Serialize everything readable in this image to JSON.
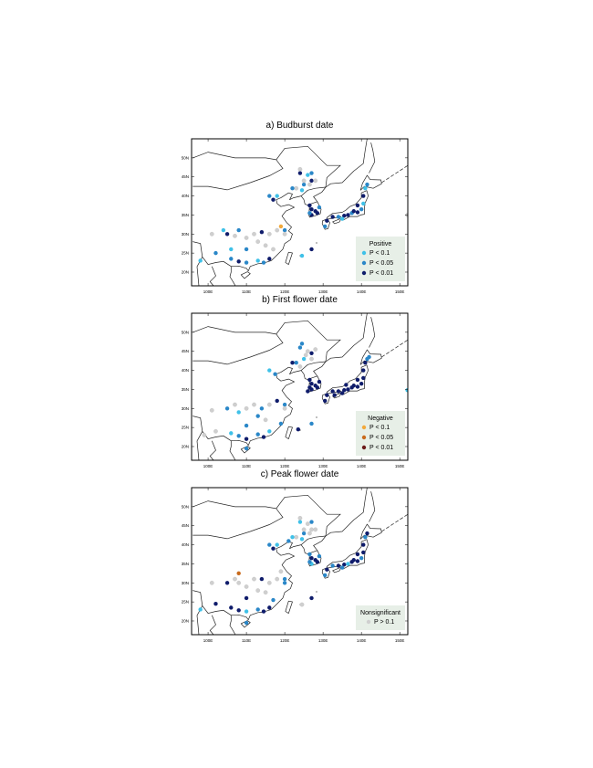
{
  "map": {
    "xlim": [
      95.7,
      152.1
    ],
    "ylim": [
      16.4,
      55
    ],
    "xticks": [
      {
        "value": 100,
        "label": "100E"
      },
      {
        "value": 110,
        "label": "110E"
      },
      {
        "value": 120,
        "label": "120E"
      },
      {
        "value": 130,
        "label": "130E"
      },
      {
        "value": 140,
        "label": "140E"
      },
      {
        "value": 150,
        "label": "150E"
      }
    ],
    "yticks": [
      {
        "value": 20,
        "label": "20N"
      },
      {
        "value": 25,
        "label": "25N"
      },
      {
        "value": 30,
        "label": "30N"
      },
      {
        "value": 35,
        "label": "35N"
      },
      {
        "value": 40,
        "label": "40N"
      },
      {
        "value": 45,
        "label": "45N"
      },
      {
        "value": 50,
        "label": "50N"
      }
    ],
    "palette": [
      "#3fc1e8",
      "#2a87c8",
      "#0f1c6b",
      "#f2a93b",
      "#c96a1c",
      "#6b1a1a",
      "#cfcfcf"
    ]
  },
  "panels": [
    {
      "title": "a) Budburst date",
      "legend": {
        "title": "Positive",
        "items": [
          {
            "label": "P < 0.1",
            "color": 0
          },
          {
            "label": "P < 0.05",
            "color": 1
          },
          {
            "label": "P < 0.01",
            "color": 2
          }
        ]
      },
      "points": [
        [
          124,
          46,
          2
        ],
        [
          126,
          45.5,
          0
        ],
        [
          127,
          44,
          2
        ],
        [
          125,
          43,
          1
        ],
        [
          123,
          42,
          6
        ],
        [
          125,
          44,
          6
        ],
        [
          126.5,
          43,
          6
        ],
        [
          128,
          44,
          6
        ],
        [
          124,
          47,
          6
        ],
        [
          122,
          42,
          1
        ],
        [
          124.5,
          41.5,
          0
        ],
        [
          127,
          46,
          1
        ],
        [
          116,
          40,
          1
        ],
        [
          117,
          39,
          2
        ],
        [
          118,
          40,
          0
        ],
        [
          126.5,
          37.5,
          2
        ],
        [
          127,
          36.5,
          2
        ],
        [
          128,
          36,
          2
        ],
        [
          127,
          35,
          2
        ],
        [
          126.5,
          35.5,
          1
        ],
        [
          128.5,
          35.5,
          2
        ],
        [
          129,
          37,
          1
        ],
        [
          131,
          33.5,
          2
        ],
        [
          132.5,
          34.5,
          2
        ],
        [
          134,
          34.5,
          1
        ],
        [
          135.5,
          34.8,
          2
        ],
        [
          136.5,
          35,
          2
        ],
        [
          137.5,
          35.5,
          1
        ],
        [
          139,
          35.7,
          2
        ],
        [
          140,
          36.5,
          1
        ],
        [
          140.5,
          38,
          0
        ],
        [
          140.5,
          40,
          2
        ],
        [
          141,
          42,
          0
        ],
        [
          141.5,
          43,
          1
        ],
        [
          139,
          37.5,
          2
        ],
        [
          130.5,
          32,
          1
        ],
        [
          135,
          34,
          0
        ],
        [
          138,
          36,
          2
        ],
        [
          104,
          31,
          0
        ],
        [
          105,
          30,
          2
        ],
        [
          107,
          29.5,
          6
        ],
        [
          108,
          31,
          1
        ],
        [
          110,
          29,
          6
        ],
        [
          112,
          30,
          6
        ],
        [
          114,
          30.5,
          2
        ],
        [
          116,
          30,
          6
        ],
        [
          118,
          31,
          6
        ],
        [
          119,
          32,
          3
        ],
        [
          120,
          31,
          1
        ],
        [
          113,
          28,
          6
        ],
        [
          115,
          27,
          6
        ],
        [
          110,
          26,
          1
        ],
        [
          102,
          25,
          1
        ],
        [
          98,
          23,
          0
        ],
        [
          106,
          23.5,
          1
        ],
        [
          108,
          22.8,
          2
        ],
        [
          110,
          22.5,
          1
        ],
        [
          113,
          23,
          0
        ],
        [
          114.5,
          22.5,
          1
        ],
        [
          116,
          23.5,
          2
        ],
        [
          117,
          26,
          6
        ],
        [
          101,
          30,
          6
        ],
        [
          120,
          30,
          6
        ],
        [
          152,
          35,
          6
        ],
        [
          127,
          26,
          2
        ],
        [
          124.5,
          24.3,
          0
        ],
        [
          106,
          26,
          0
        ]
      ]
    },
    {
      "title": "b) First flower date",
      "legend": {
        "title": "Negative",
        "items": [
          {
            "label": "P < 0.1",
            "color": 3
          },
          {
            "label": "P < 0.05",
            "color": 4
          },
          {
            "label": "P < 0.01",
            "color": 5
          }
        ]
      },
      "points": [
        [
          124,
          46,
          1
        ],
        [
          126,
          45,
          6
        ],
        [
          127,
          44.5,
          2
        ],
        [
          125,
          43,
          0
        ],
        [
          123,
          42,
          1
        ],
        [
          125.5,
          44,
          6
        ],
        [
          127,
          43,
          6
        ],
        [
          128,
          45.5,
          6
        ],
        [
          124.5,
          47,
          1
        ],
        [
          122,
          42,
          2
        ],
        [
          124,
          41,
          6
        ],
        [
          116,
          40,
          0
        ],
        [
          117.5,
          39,
          1
        ],
        [
          126.5,
          37.5,
          2
        ],
        [
          127,
          36.5,
          2
        ],
        [
          128,
          36,
          2
        ],
        [
          127,
          35,
          2
        ],
        [
          126.5,
          35.5,
          2
        ],
        [
          128.5,
          35.5,
          2
        ],
        [
          129,
          37,
          2
        ],
        [
          126,
          34.5,
          2
        ],
        [
          131,
          33.5,
          2
        ],
        [
          132.5,
          34.5,
          2
        ],
        [
          134,
          34.5,
          2
        ],
        [
          135.5,
          34.8,
          2
        ],
        [
          136.5,
          35,
          2
        ],
        [
          137.5,
          35.5,
          2
        ],
        [
          139,
          35.7,
          2
        ],
        [
          140,
          36.5,
          2
        ],
        [
          140.5,
          38,
          2
        ],
        [
          140.5,
          40,
          2
        ],
        [
          141,
          42,
          2
        ],
        [
          141.5,
          43,
          1
        ],
        [
          139,
          37.5,
          2
        ],
        [
          130.5,
          32,
          2
        ],
        [
          135,
          34,
          2
        ],
        [
          138,
          36,
          2
        ],
        [
          133,
          33.5,
          2
        ],
        [
          136,
          36.2,
          2
        ],
        [
          142,
          43.5,
          1
        ],
        [
          152,
          34.8,
          0
        ],
        [
          105,
          30,
          1
        ],
        [
          107,
          31,
          6
        ],
        [
          108,
          29,
          0
        ],
        [
          110,
          30,
          6
        ],
        [
          112,
          31,
          6
        ],
        [
          114,
          30,
          1
        ],
        [
          116,
          31,
          6
        ],
        [
          118,
          32,
          2
        ],
        [
          120,
          31,
          1
        ],
        [
          113,
          28,
          1
        ],
        [
          115,
          27,
          6
        ],
        [
          110,
          25.5,
          1
        ],
        [
          102,
          24,
          6
        ],
        [
          99,
          23,
          6
        ],
        [
          106,
          23.5,
          0
        ],
        [
          108,
          22.8,
          1
        ],
        [
          110,
          22,
          2
        ],
        [
          113,
          23.2,
          1
        ],
        [
          114.5,
          22.5,
          2
        ],
        [
          116,
          24,
          0
        ],
        [
          119,
          26,
          1
        ],
        [
          101,
          29.5,
          6
        ],
        [
          120,
          30,
          6
        ],
        [
          127,
          26,
          1
        ],
        [
          123.5,
          24.5,
          2
        ],
        [
          110,
          19.5,
          1
        ]
      ]
    },
    {
      "title": "c) Peak flower date",
      "legend": {
        "title": "Nonsignificant",
        "items": [
          {
            "label": "P > 0.1",
            "color": 6
          }
        ]
      },
      "points": [
        [
          124,
          46,
          0
        ],
        [
          126,
          45.5,
          6
        ],
        [
          127,
          44,
          6
        ],
        [
          125,
          43,
          1
        ],
        [
          123,
          42,
          6
        ],
        [
          125,
          44,
          6
        ],
        [
          126.5,
          43,
          6
        ],
        [
          128,
          44,
          6
        ],
        [
          124,
          47,
          6
        ],
        [
          122,
          42,
          0
        ],
        [
          124.5,
          41.5,
          0
        ],
        [
          127,
          46,
          1
        ],
        [
          121,
          41,
          1
        ],
        [
          116,
          40,
          1
        ],
        [
          117,
          39,
          2
        ],
        [
          118,
          40,
          0
        ],
        [
          126.5,
          37.5,
          1
        ],
        [
          127,
          36.5,
          2
        ],
        [
          128,
          36,
          2
        ],
        [
          127,
          35,
          0
        ],
        [
          126.5,
          35.5,
          1
        ],
        [
          128.5,
          35.5,
          2
        ],
        [
          129,
          37,
          1
        ],
        [
          131,
          33.5,
          2
        ],
        [
          132.5,
          34.5,
          1
        ],
        [
          134,
          34.5,
          2
        ],
        [
          135.5,
          34.8,
          2
        ],
        [
          136.5,
          35,
          0
        ],
        [
          137.5,
          35.5,
          2
        ],
        [
          139,
          35.7,
          2
        ],
        [
          140,
          36.5,
          1
        ],
        [
          140.5,
          38,
          2
        ],
        [
          140.5,
          40,
          2
        ],
        [
          141,
          42,
          1
        ],
        [
          141.5,
          43,
          2
        ],
        [
          139,
          37.5,
          2
        ],
        [
          130.5,
          32,
          1
        ],
        [
          135,
          34,
          1
        ],
        [
          138,
          36,
          2
        ],
        [
          105,
          30,
          2
        ],
        [
          107,
          31,
          6
        ],
        [
          108,
          30,
          6
        ],
        [
          110,
          29,
          6
        ],
        [
          112,
          31,
          6
        ],
        [
          114,
          31,
          2
        ],
        [
          116,
          30,
          6
        ],
        [
          118,
          31,
          6
        ],
        [
          119,
          33,
          6
        ],
        [
          120,
          31,
          1
        ],
        [
          113,
          28,
          6
        ],
        [
          115,
          27.5,
          6
        ],
        [
          110,
          26,
          2
        ],
        [
          108,
          32.5,
          4
        ],
        [
          102,
          24.5,
          2
        ],
        [
          98,
          23,
          0
        ],
        [
          106,
          23.5,
          2
        ],
        [
          108,
          22.8,
          2
        ],
        [
          110,
          22.5,
          0
        ],
        [
          113,
          23,
          1
        ],
        [
          114.5,
          22.5,
          2
        ],
        [
          116,
          23.5,
          2
        ],
        [
          117,
          25.5,
          1
        ],
        [
          101,
          30,
          6
        ],
        [
          120,
          30,
          1
        ],
        [
          127,
          26,
          2
        ],
        [
          124.5,
          24.3,
          6
        ],
        [
          110,
          19.5,
          1
        ]
      ]
    }
  ]
}
